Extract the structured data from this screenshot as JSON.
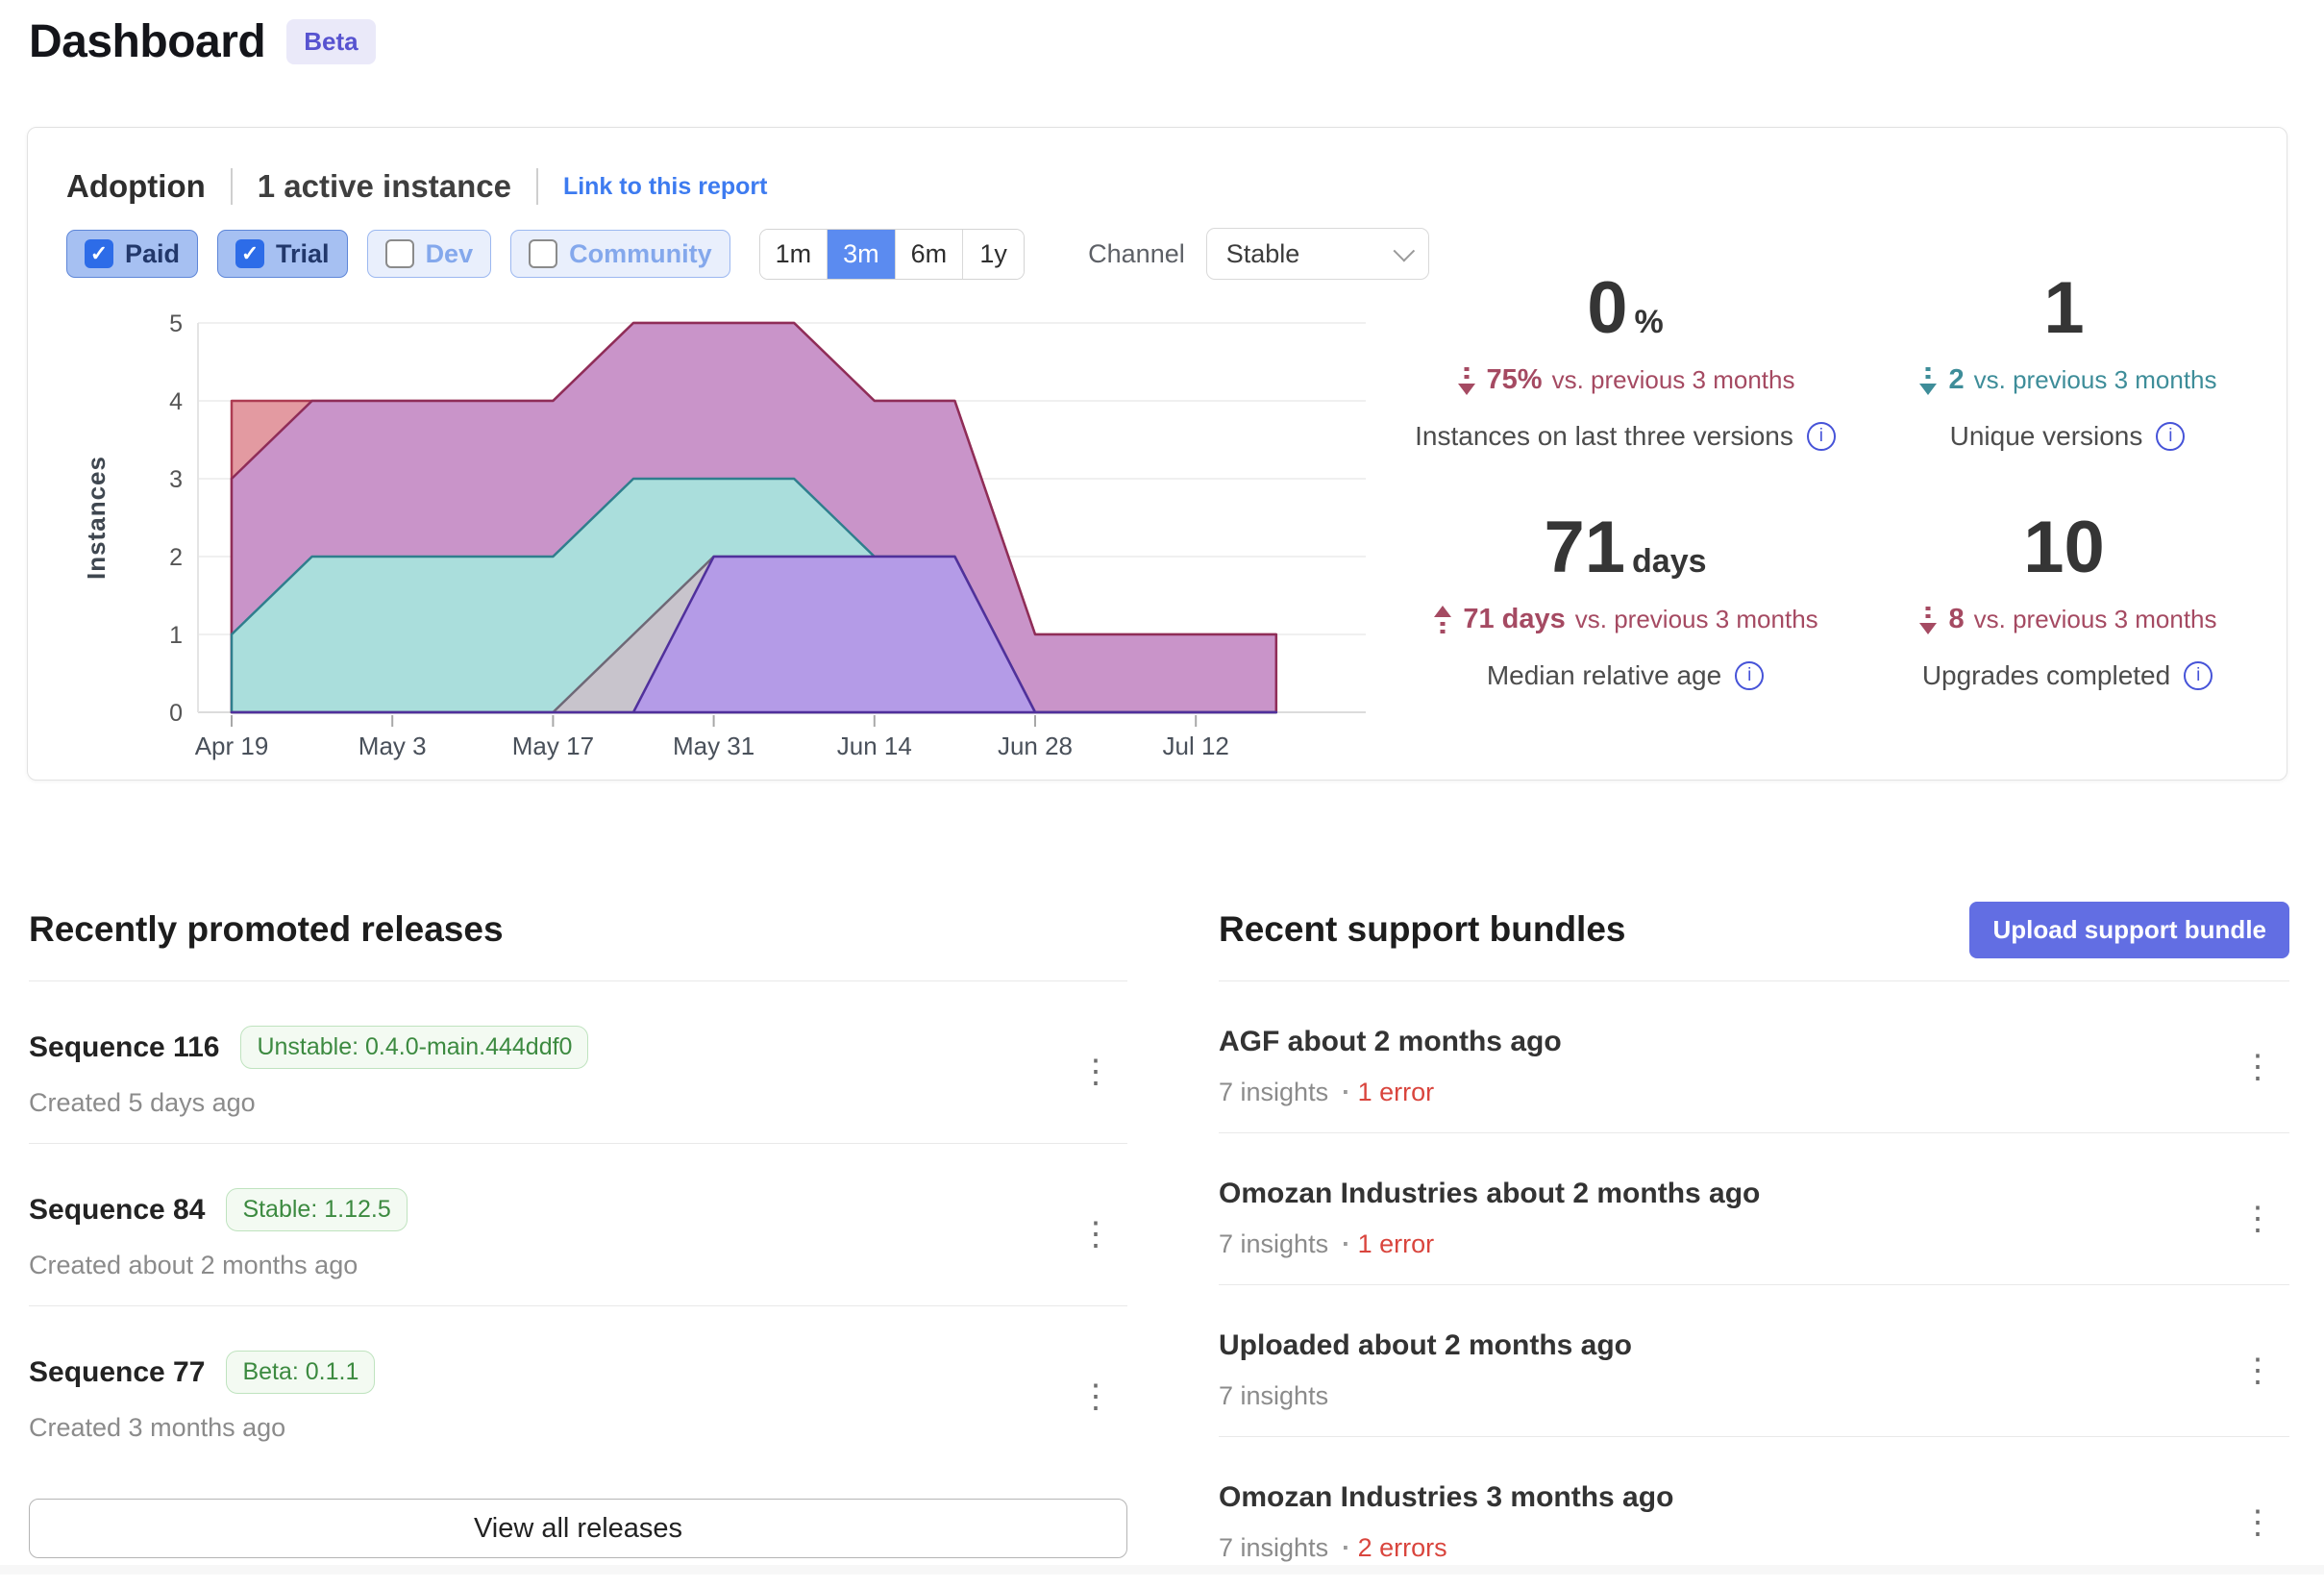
{
  "page": {
    "title": "Dashboard",
    "beta_badge": "Beta"
  },
  "icons": {
    "kebab": "⋮",
    "check": "✓",
    "info": "i",
    "dot_separator": "·"
  },
  "colors": {
    "accent_blue": "#3d7bf0",
    "selected_range_blue": "#5b8bf0",
    "upload_indigo": "#626ee3",
    "error_red": "#d9453d",
    "delta_red": "#a54a62",
    "delta_teal": "#3e8d99",
    "badge_green": "#3c8a40"
  },
  "adoption": {
    "title": "Adoption",
    "active_count": "1 active instance",
    "link_label": "Link to this report",
    "filters": [
      {
        "label": "Paid",
        "checked": true
      },
      {
        "label": "Trial",
        "checked": true
      },
      {
        "label": "Dev",
        "checked": false
      },
      {
        "label": "Community",
        "checked": false
      }
    ],
    "ranges": [
      {
        "label": "1m",
        "selected": false
      },
      {
        "label": "3m",
        "selected": true
      },
      {
        "label": "6m",
        "selected": false
      },
      {
        "label": "1y",
        "selected": false
      }
    ],
    "channel_label": "Channel",
    "channel_value": "Stable",
    "stats": [
      {
        "value": "0",
        "unit": "%",
        "delta_num": "75%",
        "delta_rest": "vs. previous 3 months",
        "direction": "down",
        "tone": "red",
        "caption": "Instances on last three versions"
      },
      {
        "value": "1",
        "unit": "",
        "delta_num": "2",
        "delta_rest": "vs. previous 3 months",
        "direction": "down",
        "tone": "teal",
        "caption": "Unique versions"
      },
      {
        "value": "71",
        "unit": "days",
        "delta_num": "71 days",
        "delta_rest": "vs. previous 3 months",
        "direction": "up",
        "tone": "red",
        "caption": "Median relative age"
      },
      {
        "value": "10",
        "unit": "",
        "delta_num": "8",
        "delta_rest": "vs. previous 3 months",
        "direction": "down",
        "tone": "red",
        "caption": "Upgrades completed"
      }
    ]
  },
  "chart_data": {
    "type": "area",
    "x": [
      "Apr 19",
      "Apr 26",
      "May 3",
      "May 10",
      "May 17",
      "May 24",
      "May 31",
      "Jun 7",
      "Jun 14",
      "Jun 21",
      "Jun 28",
      "Jul 5",
      "Jul 12",
      "Jul 19"
    ],
    "x_tick_every": 2,
    "ylabel": "Instances",
    "ylim": [
      0,
      5
    ],
    "yticks": [
      0,
      1,
      2,
      3,
      4,
      5
    ],
    "grid": true,
    "legend": "none",
    "series": [
      {
        "name": "series-1",
        "values": [
          4,
          4,
          4,
          4,
          4,
          5,
          5,
          5,
          4,
          4,
          1,
          1,
          1,
          1
        ],
        "fill": "#e39aa1",
        "stroke": "#ad3c52"
      },
      {
        "name": "series-2",
        "values": [
          3,
          4,
          4,
          4,
          4,
          5,
          5,
          5,
          4,
          4,
          1,
          1,
          1,
          1
        ],
        "fill": "#c994c9",
        "stroke": "#8f2d58"
      },
      {
        "name": "series-3",
        "values": [
          1,
          2,
          2,
          2,
          2,
          3,
          3,
          3,
          2,
          2,
          0,
          0,
          0,
          0
        ],
        "fill": "#aadedc",
        "stroke": "#2f7e8d"
      },
      {
        "name": "series-4",
        "values": [
          0,
          0,
          0,
          0,
          0,
          1,
          2,
          2,
          2,
          2,
          0,
          0,
          0,
          0
        ],
        "fill": "#c8c4cc",
        "stroke": "#6e6876"
      },
      {
        "name": "series-5",
        "values": [
          0,
          0,
          0,
          0,
          0,
          0,
          2,
          2,
          2,
          2,
          0,
          0,
          0,
          0
        ],
        "fill": "#b49be7",
        "stroke": "#50309c"
      }
    ]
  },
  "releases": {
    "heading": "Recently promoted releases",
    "view_all_label": "View all releases",
    "items": [
      {
        "title": "Sequence 116",
        "badge": "Unstable: 0.4.0-main.444ddf0",
        "created": "Created 5 days ago"
      },
      {
        "title": "Sequence 84",
        "badge": "Stable: 1.12.5",
        "created": "Created about 2 months ago"
      },
      {
        "title": "Sequence 77",
        "badge": "Beta: 0.1.1",
        "created": "Created 3 months ago"
      }
    ]
  },
  "support_bundles": {
    "heading": "Recent support bundles",
    "upload_label": "Upload support bundle",
    "items": [
      {
        "title": "AGF about 2 months ago",
        "insights": "7 insights",
        "errors": "1 error"
      },
      {
        "title": "Omozan Industries about 2 months ago",
        "insights": "7 insights",
        "errors": "1 error"
      },
      {
        "title": "Uploaded about 2 months ago",
        "insights": "7 insights",
        "errors": ""
      },
      {
        "title": "Omozan Industries 3 months ago",
        "insights": "7 insights",
        "errors": "2 errors"
      }
    ]
  }
}
